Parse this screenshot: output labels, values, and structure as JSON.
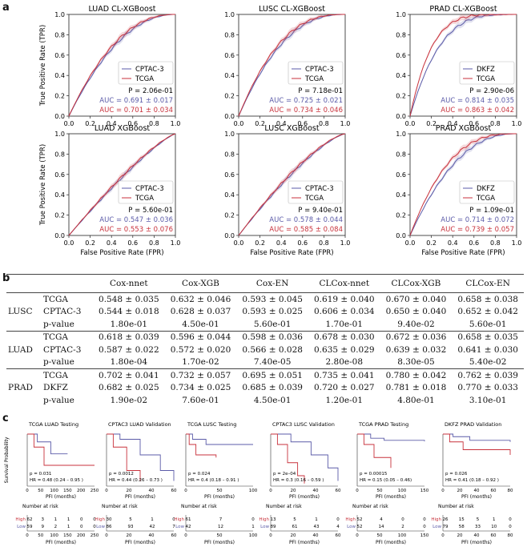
{
  "panel_letters": {
    "a": "a",
    "b": "b",
    "c": "c"
  },
  "panel_a": {
    "y_label": "True Positive Rate (TPR)",
    "x_label": "False Positive Rate (FPR)",
    "ticks": [
      "0.0",
      "0.2",
      "0.4",
      "0.6",
      "0.8",
      "1.0"
    ],
    "plots": [
      {
        "title": "LUAD CL-XGBoost",
        "legend": [
          "CPTAC-3",
          "TCGA"
        ],
        "p": "P = 2.06e-01",
        "auc1": "AUC = 0.691 ± 0.017",
        "auc2": "AUC = 0.701 ± 0.034"
      },
      {
        "title": "LUSC CL-XGBoost",
        "legend": [
          "CPTAC-3",
          "TCGA"
        ],
        "p": "P = 7.18e-01",
        "auc1": "AUC = 0.725 ± 0.021",
        "auc2": "AUC = 0.734 ± 0.046"
      },
      {
        "title": "PRAD CL-XGBoost",
        "legend": [
          "DKFZ",
          "TCGA"
        ],
        "p": "P = 2.90e-06",
        "auc1": "AUC = 0.814 ± 0.035",
        "auc2": "AUC = 0.863 ± 0.042"
      },
      {
        "title": "LUAD XGBoost",
        "legend": [
          "CPTAC-3",
          "TCGA"
        ],
        "p": "P = 5.60e-01",
        "auc1": "AUC = 0.547 ± 0.036",
        "auc2": "AUC = 0.553 ± 0.076"
      },
      {
        "title": "LUSC XGBoost",
        "legend": [
          "CPTAC-3",
          "TCGA"
        ],
        "p": "P = 9.40e-01",
        "auc1": "AUC = 0.578 ± 0.044",
        "auc2": "AUC = 0.585 ± 0.084"
      },
      {
        "title": "PRAD XGBoost",
        "legend": [
          "DKFZ",
          "TCGA"
        ],
        "p": "P = 1.09e-01",
        "auc1": "AUC = 0.714 ± 0.072",
        "auc2": "AUC = 0.739 ± 0.057"
      }
    ],
    "colors": {
      "blue": "#5b5ba8",
      "red": "#c8323c"
    }
  },
  "panel_b": {
    "headers": [
      "Cox-nnet",
      "Cox-XGB",
      "Cox-EN",
      "CLCox-nnet",
      "CLCox-XGB",
      "CLCox-EN"
    ],
    "groups": [
      {
        "name": "LUSC",
        "rows": [
          {
            "label": "TCGA",
            "vals": [
              "0.548 ± 0.035",
              "0.632 ± 0.046",
              "0.593 ± 0.045",
              "0.619 ± 0.040",
              "0.670 ± 0.040",
              "0.658 ± 0.038"
            ]
          },
          {
            "label": "CPTAC-3",
            "vals": [
              "0.544 ± 0.018",
              "0.628 ± 0.037",
              "0.593 ± 0.025",
              "0.606 ± 0.034",
              "0.650 ± 0.040",
              "0.652 ± 0.042"
            ]
          },
          {
            "label": "p-value",
            "vals": [
              "1.80e-01",
              "4.50e-01",
              "5.60e-01",
              "1.70e-01",
              "9.40e-02",
              "5.60e-01"
            ]
          }
        ]
      },
      {
        "name": "LUAD",
        "rows": [
          {
            "label": "TCGA",
            "vals": [
              "0.618 ± 0.039",
              "0.596 ± 0.044",
              "0.598 ± 0.036",
              "0.678 ± 0.030",
              "0.672 ± 0.036",
              "0.658 ± 0.035"
            ]
          },
          {
            "label": "CPTAC-3",
            "vals": [
              "0.587 ± 0.022",
              "0.572 ± 0.020",
              "0.566 ± 0.028",
              "0.635 ± 0.029",
              "0.639 ± 0.032",
              "0.641 ± 0.030"
            ]
          },
          {
            "label": "p-value",
            "vals": [
              "1.80e-04",
              "1.70e-02",
              "7.40e-05",
              "2.80e-08",
              "8.30e-05",
              "5.40e-02"
            ]
          }
        ]
      },
      {
        "name": "PRAD",
        "rows": [
          {
            "label": "TCGA",
            "vals": [
              "0.702 ± 0.041",
              "0.732 ± 0.057",
              "0.695 ± 0.051",
              "0.735 ± 0.041",
              "0.780 ± 0.042",
              "0.762 ± 0.039"
            ]
          },
          {
            "label": "DKFZ",
            "vals": [
              "0.682 ± 0.025",
              "0.734 ± 0.025",
              "0.685 ± 0.039",
              "0.720 ± 0.027",
              "0.781 ± 0.018",
              "0.770 ± 0.033"
            ]
          },
          {
            "label": "p-value",
            "vals": [
              "1.90e-02",
              "7.60e-01",
              "4.50e-01",
              "1.20e-01",
              "4.80e-01",
              "3.10e-01"
            ]
          }
        ]
      }
    ]
  },
  "panel_c": {
    "y_label": "Survival Probability",
    "x_label": "PFI (months)",
    "risk_title": "Number at risk",
    "high": "High",
    "low": "Low",
    "plots": [
      {
        "title": "TCGA  LUAD Testing",
        "p": "p = 0.031",
        "hr": "HR = 0.48  (0.24 – 0.95 )",
        "xticks": [
          "0",
          "50",
          "100",
          "150",
          "200",
          "250"
        ],
        "risk_high": [
          "62",
          "3",
          "1",
          "1",
          "0",
          "0"
        ],
        "risk_low": [
          "59",
          "9",
          "2",
          "1",
          "0",
          "0"
        ]
      },
      {
        "title": "CPTAC3  LUAD Validation",
        "p": "p = 0.0012",
        "hr": "HR = 0.44  (0.26 – 0.73 )",
        "xticks": [
          "0",
          "20",
          "40",
          "60"
        ],
        "risk_high": [
          "30",
          "5",
          "1",
          "0"
        ],
        "risk_low": [
          "86",
          "93",
          "42",
          "7"
        ]
      },
      {
        "title": "TCGA  LUSC Testing",
        "p": "p = 0.024",
        "hr": "HR = 0.4  (0.18 – 0.91 )",
        "xticks": [
          "0",
          "50",
          "100"
        ],
        "risk_high": [
          "61",
          "7",
          "0"
        ],
        "risk_low": [
          "42",
          "12",
          "1"
        ]
      },
      {
        "title": "CPTAC3  LUSC Validation",
        "p": "p = 2e–04",
        "hr": "HR = 0.3  (0.16 – 0.59 )",
        "xticks": [
          "0",
          "20",
          "40",
          "60"
        ],
        "risk_high": [
          "13",
          "5",
          "1",
          "0"
        ],
        "risk_low": [
          "89",
          "61",
          "43",
          "4"
        ]
      },
      {
        "title": "TCGA  PRAD Testing",
        "p": "p = 0.00015",
        "hr": "HR = 0.15  (0.05 – 0.46)",
        "xticks": [
          "0",
          "50",
          "100",
          "150"
        ],
        "risk_high": [
          "52",
          "4",
          "0",
          "0"
        ],
        "risk_low": [
          "52",
          "14",
          "2",
          "0"
        ]
      },
      {
        "title": "DKFZ  PRAD Validation",
        "p": "p = 0.026",
        "hr": "HR = 0.41  (0.18 – 0.92 )",
        "xticks": [
          "0",
          "20",
          "40",
          "60",
          "80"
        ],
        "risk_high": [
          "26",
          "15",
          "5",
          "1",
          "0"
        ],
        "risk_low": [
          "79",
          "58",
          "33",
          "10",
          "0"
        ]
      }
    ]
  }
}
